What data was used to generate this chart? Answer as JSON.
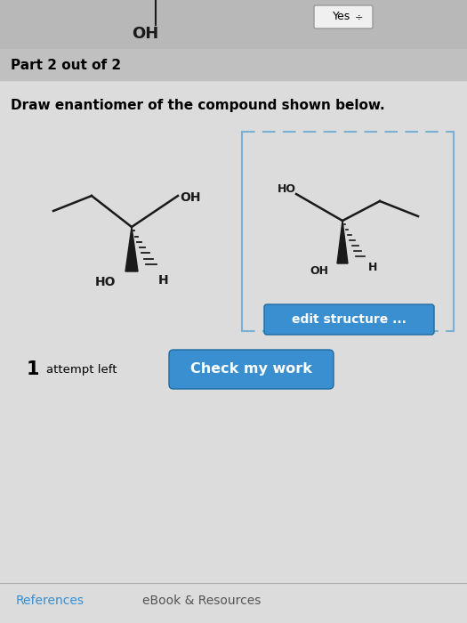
{
  "bg_color": "#e8e8e8",
  "main_bg": "#dcdcdc",
  "part_bar_color": "#c0c0c0",
  "title_text": "Draw enantiomer of the compound shown below.",
  "part_text": "Part 2 out of 2",
  "yes_btn_text": "Yes",
  "edit_btn_text": "edit structure ...",
  "check_btn_text": "Check my work",
  "attempt_text": "1",
  "attempt_label": "attempt left",
  "references_text": "References",
  "ebook_text": "eBook & Resources",
  "blue_btn_color": "#3a8fd1",
  "edit_btn_color": "#3a8fd1",
  "top_oh_text": "OH",
  "dashed_border_color": "#7ab0d4",
  "line_color": "#1a1a1a"
}
